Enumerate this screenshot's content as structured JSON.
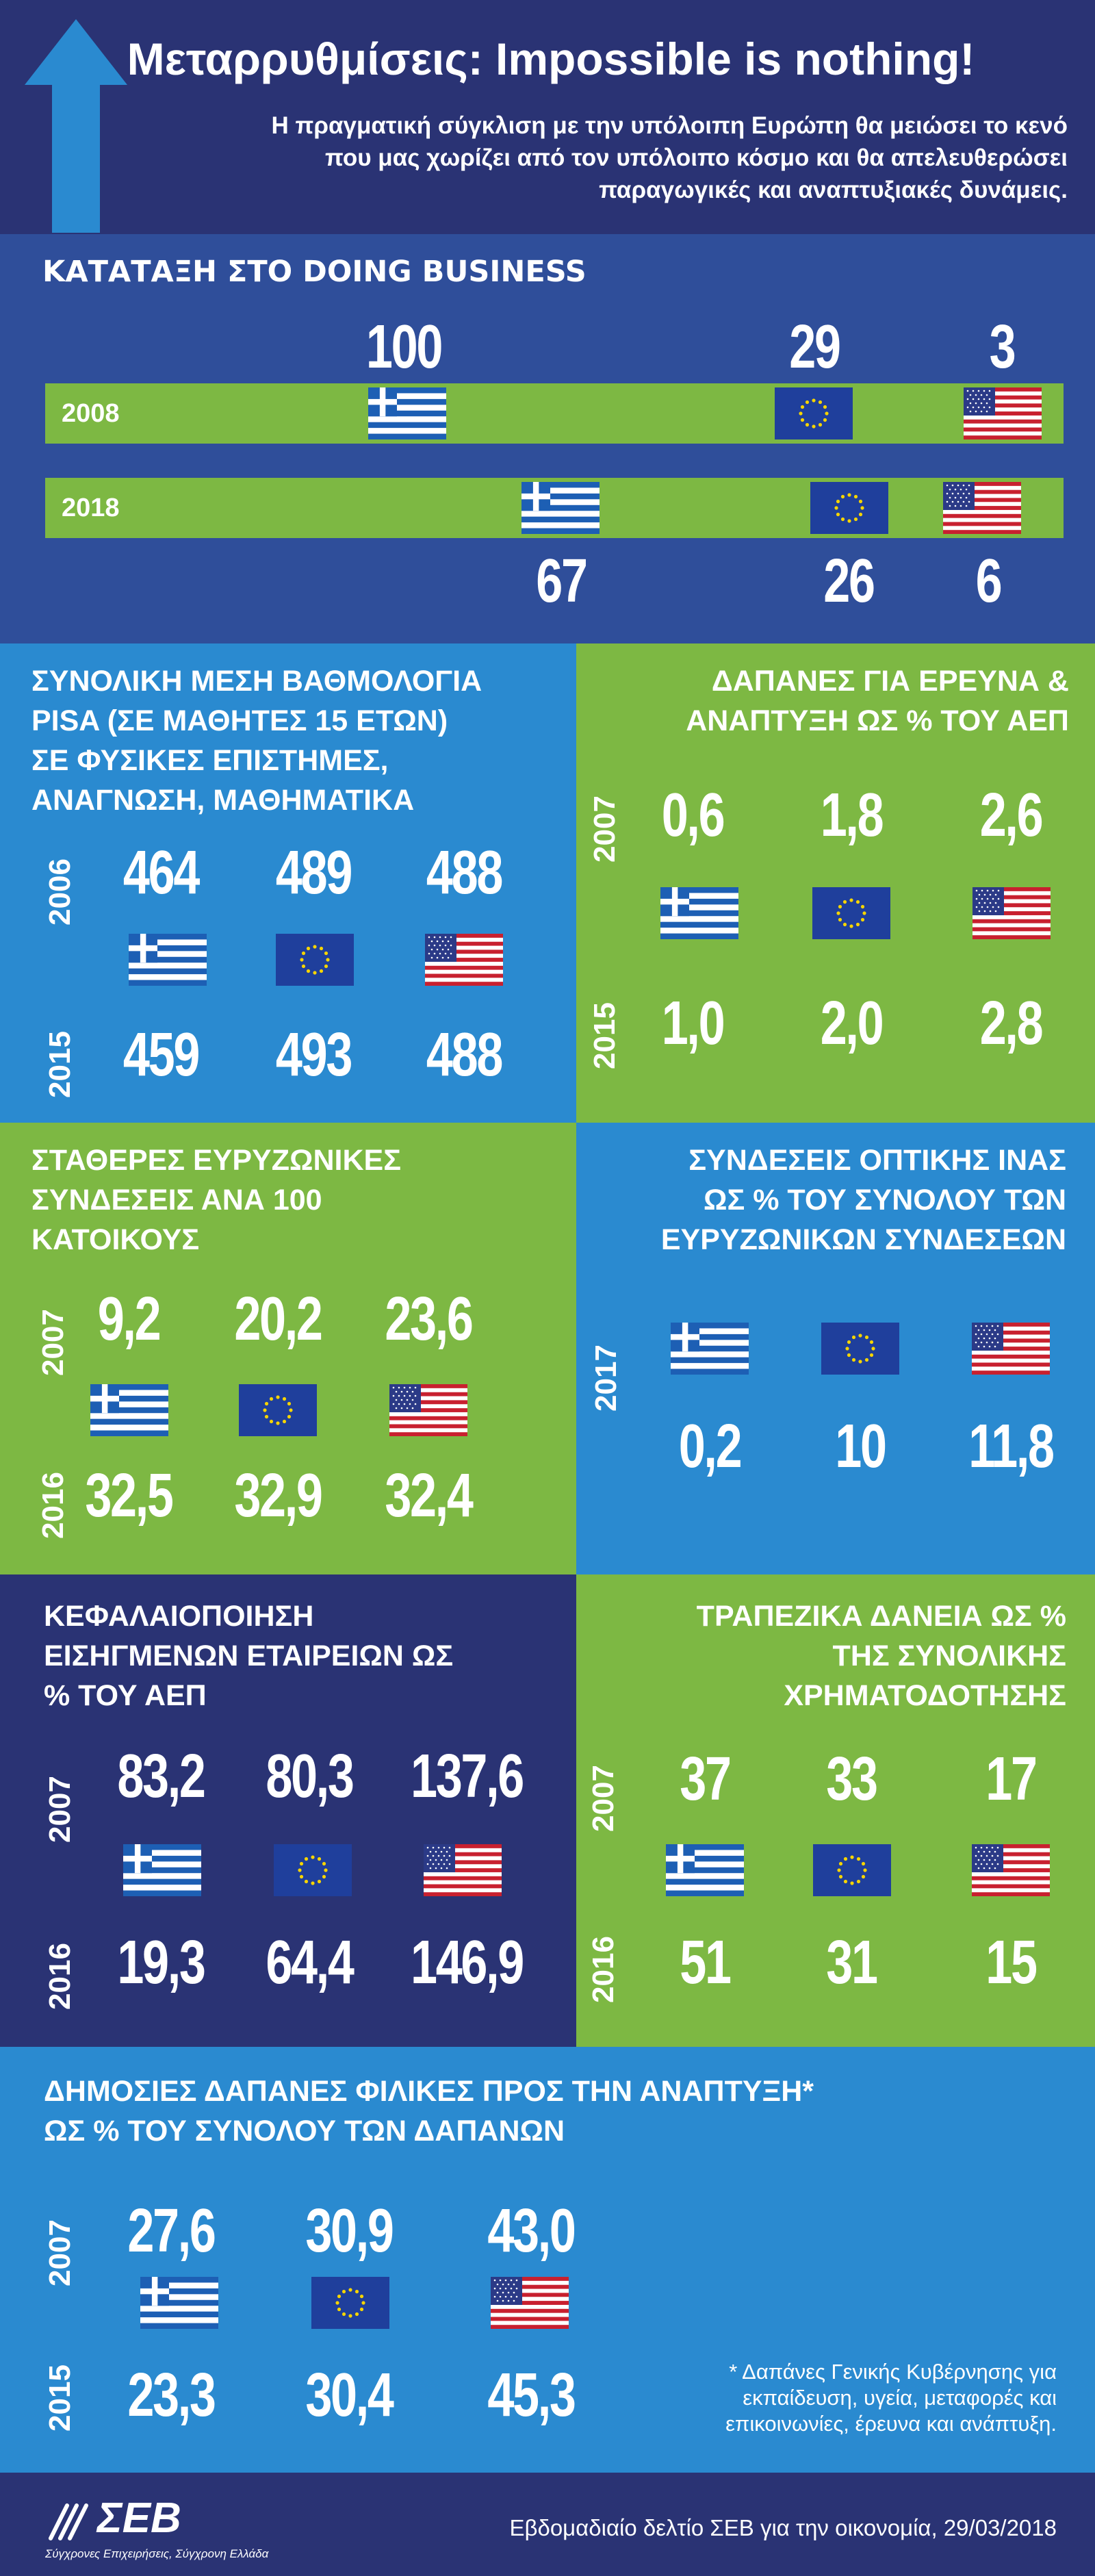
{
  "header": {
    "title": "Μεταρρυθμίσεις: Impossible is nothing!",
    "subtitle_lines": [
      "Η πραγματική σύγκλιση με την υπόλοιπη Ευρώπη θα μειώσει το κενό",
      "που μας χωρίζει από τον υπόλοιπο κόσμο και θα απελευθερώσει",
      "παραγωγικές και αναπτυξιακές δυνάμεις."
    ]
  },
  "flags": {
    "greece": "greece-flag-icon",
    "eu": "eu-flag-icon",
    "usa": "usa-flag-icon"
  },
  "colors": {
    "navy": "#2a3374",
    "blue": "#2f4e9a",
    "sky": "#2a8ad0",
    "green": "#7db843"
  },
  "doing_business": {
    "title": "ΚΑΤΑΤΑΞΗ ΣΤΟ DOING BUSINESS",
    "year_a": "2008",
    "year_b": "2018",
    "values_a": [
      "100",
      "29",
      "3"
    ],
    "values_b": [
      "67",
      "26",
      "6"
    ]
  },
  "pisa": {
    "title_lines": [
      "ΣΥΝΟΛΙΚΗ ΜΕΣΗ ΒΑΘΜΟΛΟΓΙΑ",
      "PISA (ΣΕ ΜΑΘΗΤΕΣ 15 ΕΤΩΝ)",
      "ΣΕ ΦΥΣΙΚΕΣ ΕΠΙΣΤΗΜΕΣ,",
      "ΑΝΑΓΝΩΣΗ, ΜΑΘΗΜΑΤΙΚΑ"
    ],
    "year_a": "2006",
    "year_b": "2015",
    "values_a": [
      "464",
      "489",
      "488"
    ],
    "values_b": [
      "459",
      "493",
      "488"
    ]
  },
  "rnd": {
    "title_lines": [
      "ΔΑΠΑΝΕΣ ΓΙΑ ΕΡΕΥΝΑ &",
      "ΑΝΑΠΤΥΞΗ ΩΣ % ΤΟΥ ΑΕΠ"
    ],
    "year_a": "2007",
    "year_b": "2015",
    "values_a": [
      "0,6",
      "1,8",
      "2,6"
    ],
    "values_b": [
      "1,0",
      "2,0",
      "2,8"
    ]
  },
  "broadband": {
    "title_lines": [
      "ΣΤΑΘΕΡΕΣ ΕΥΡΥΖΩΝΙΚΕΣ",
      "ΣΥΝΔΕΣΕΙΣ ΑΝΑ 100",
      "ΚΑΤΟΙΚΟΥΣ"
    ],
    "year_a": "2007",
    "year_b": "2016",
    "values_a": [
      "9,2",
      "20,2",
      "23,6"
    ],
    "values_b": [
      "32,5",
      "32,9",
      "32,4"
    ]
  },
  "fiber": {
    "title_lines": [
      "ΣΥΝΔΕΣΕΙΣ ΟΠΤΙΚΗΣ ΙΝΑΣ",
      "ΩΣ % ΤΟΥ ΣΥΝΟΛΟΥ ΤΩΝ",
      "ΕΥΡΥΖΩΝΙΚΩΝ ΣΥΝΔΕΣΕΩΝ"
    ],
    "year": "2017",
    "values": [
      "0,2",
      "10",
      "11,8"
    ]
  },
  "capitalization": {
    "title_lines": [
      "ΚΕΦΑΛΑΙΟΠΟΙΗΣΗ",
      "ΕΙΣΗΓΜΕΝΩΝ ΕΤΑΙΡΕΙΩΝ ΩΣ",
      "% ΤΟΥ ΑΕΠ"
    ],
    "year_a": "2007",
    "year_b": "2016",
    "values_a": [
      "83,2",
      "80,3",
      "137,6"
    ],
    "values_b": [
      "19,3",
      "64,4",
      "146,9"
    ]
  },
  "bank_loans": {
    "title_lines": [
      "ΤΡΑΠΕΖΙΚΑ ΔΑΝΕΙΑ ΩΣ %",
      "ΤΗΣ ΣΥΝΟΛΙΚΗΣ",
      "ΧΡΗΜΑΤΟΔΟΤΗΣΗΣ"
    ],
    "year_a": "2007",
    "year_b": "2016",
    "values_a": [
      "37",
      "33",
      "17"
    ],
    "values_b": [
      "51",
      "31",
      "15"
    ]
  },
  "public_spending": {
    "title_lines": [
      "ΔΗΜΟΣΙΕΣ ΔΑΠΑΝΕΣ ΦΙΛΙΚΕΣ ΠΡΟΣ ΤΗΝ ΑΝΑΠΤΥΞΗ*",
      "ΩΣ % ΤΟΥ ΣΥΝΟΛΟΥ ΤΩΝ ΔΑΠΑΝΩΝ"
    ],
    "year_a": "2007",
    "year_b": "2015",
    "values_a": [
      "27,6",
      "30,9",
      "43,0"
    ],
    "values_b": [
      "23,3",
      "30,4",
      "45,3"
    ],
    "footnote_lines": [
      "* Δαπάνες Γενικής Κυβέρνησης για",
      "εκπαίδευση, υγεία, μεταφορές και",
      "επικοινωνίες, έρευνα και ανάπτυξη."
    ]
  },
  "footer": {
    "logo": "ΣΕΒ",
    "logo_tagline": "Σύγχρονες Επιχειρήσεις, Σύγχρονη Ελλάδα",
    "source": "Εβδομαδιαίο δελτίο ΣΕΒ για την οικονομία, 29/03/2018"
  }
}
